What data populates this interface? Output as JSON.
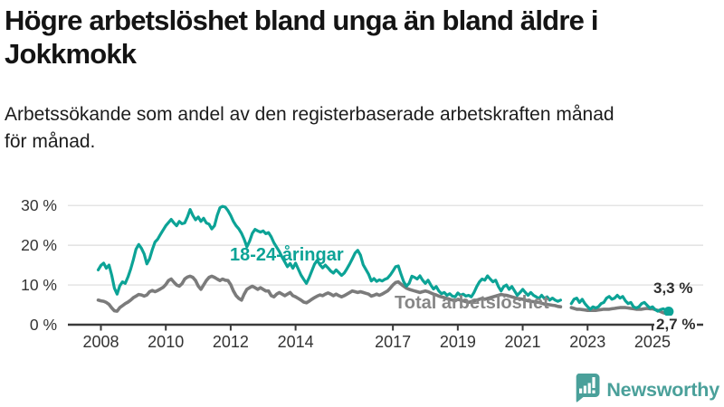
{
  "title_lines": [
    "Högre arbetslöshet bland unga än bland äldre i",
    "Jokkmokk"
  ],
  "subtitle_lines": [
    "Arbetssökande som andel av den registerbaserade arbetskraften månad",
    "för månad."
  ],
  "branding": {
    "logo_text": "Newsworthy",
    "logo_color": "#4aa09a"
  },
  "chart_data": {
    "type": "line",
    "title": "Högre arbetslöshet bland unga än bland äldre i Jokkmokk",
    "subtitle": "Arbetssökande som andel av den registerbaserade arbetskraften månad för månad.",
    "unit": "%",
    "grid": "horizontal",
    "legend_position": "inline-labels",
    "x_start_year": 2007.9167,
    "x_step_years": 0.083333,
    "x_tick_years": [
      2008,
      2010,
      2012,
      2014,
      2017,
      2019,
      2021,
      2023,
      2025
    ],
    "x_tick_labels": [
      "2008",
      "2010",
      "2012",
      "2014",
      "2017",
      "2019",
      "2021",
      "2023",
      "2025"
    ],
    "y_ticks": [
      0,
      10,
      20,
      30
    ],
    "y_tick_labels": [
      "0 %",
      "10 %",
      "20 %",
      "30 %"
    ],
    "ylim": [
      0,
      31
    ],
    "axis_color": "#3a3a3a",
    "gridline_color": "#dcdcdc",
    "tick_label_color": "#333333",
    "series": [
      {
        "name": "Total arbetslöshet",
        "color": "#7b7b7b",
        "label_color": "#868686",
        "end_label": "2,7 %",
        "end_value": 2.7,
        "end_dot": false,
        "values": [
          6.2,
          6.0,
          5.9,
          5.6,
          5.1,
          4.2,
          3.5,
          3.4,
          4.3,
          4.8,
          5.3,
          5.7,
          6.2,
          6.8,
          7.2,
          7.6,
          7.5,
          7.2,
          7.5,
          8.3,
          8.6,
          8.3,
          8.6,
          9.0,
          9.4,
          10.1,
          11.1,
          11.5,
          10.7,
          10.0,
          9.7,
          10.3,
          11.5,
          12.0,
          12.2,
          11.9,
          11.1,
          9.7,
          8.9,
          10.0,
          11.1,
          11.9,
          12.2,
          11.9,
          11.5,
          11.1,
          11.5,
          11.2,
          11.1,
          10.1,
          8.5,
          7.3,
          6.6,
          6.2,
          7.7,
          8.9,
          9.3,
          9.7,
          9.3,
          8.9,
          9.3,
          8.9,
          8.5,
          8.5,
          7.3,
          7.0,
          7.7,
          8.1,
          7.7,
          7.3,
          7.7,
          8.1,
          7.3,
          7.0,
          6.6,
          6.2,
          5.7,
          5.5,
          5.9,
          6.4,
          6.8,
          7.2,
          7.5,
          7.3,
          7.7,
          8.0,
          7.7,
          7.3,
          7.7,
          7.3,
          7.0,
          7.3,
          7.7,
          8.1,
          8.5,
          8.3,
          8.1,
          8.3,
          8.1,
          7.9,
          7.7,
          7.2,
          7.4,
          7.7,
          7.4,
          7.7,
          8.1,
          8.5,
          9.2,
          10.0,
          10.6,
          10.8,
          10.2,
          9.7,
          9.2,
          8.9,
          8.7,
          8.5,
          8.3,
          8.1,
          8.3,
          8.5,
          8.3,
          8.0,
          7.7,
          7.5,
          7.2,
          7.0,
          6.8,
          6.6,
          6.4,
          6.2,
          6.0,
          6.4,
          6.2,
          6.0,
          5.8,
          5.6,
          5.8,
          6.0,
          6.2,
          6.4,
          6.6,
          6.4,
          6.6,
          6.8,
          7.0,
          7.2,
          7.4,
          7.6,
          7.5,
          7.4,
          7.2,
          7.0,
          6.8,
          6.6,
          6.5,
          6.4,
          6.2,
          6.0,
          5.9,
          5.8,
          5.7,
          5.6,
          5.4,
          5.2,
          5.1,
          5.0,
          4.9,
          4.8,
          4.6,
          4.5,
          null,
          null,
          null,
          4.3,
          4.1,
          3.9,
          3.9,
          3.8,
          3.7,
          3.6,
          3.6,
          3.6,
          3.6,
          3.7,
          3.8,
          3.9,
          3.9,
          3.9,
          4.0,
          4.1,
          4.2,
          4.3,
          4.3,
          4.3,
          4.2,
          4.1,
          4.0,
          3.9,
          3.9,
          3.9,
          4.0,
          4.1,
          4.0,
          4.0,
          3.8,
          3.6,
          3.3,
          3.0,
          2.8,
          2.7
        ]
      },
      {
        "name": "18-24-åringar",
        "color": "#0ca396",
        "label_color": "#0ca396",
        "end_label": "3,3 %",
        "end_value": 3.3,
        "end_dot": true,
        "values": [
          13.8,
          14.9,
          15.5,
          14.2,
          15.0,
          12.4,
          9.2,
          7.7,
          9.8,
          10.8,
          10.4,
          12.0,
          14.0,
          16.4,
          19.0,
          20.2,
          19.2,
          17.8,
          15.3,
          16.6,
          18.9,
          20.8,
          21.5,
          22.7,
          23.8,
          24.9,
          25.7,
          26.5,
          25.6,
          24.9,
          26.0,
          25.4,
          25.6,
          27.1,
          29.0,
          27.5,
          26.4,
          27.1,
          26.0,
          26.8,
          25.6,
          25.3,
          24.1,
          24.9,
          27.5,
          29.4,
          29.8,
          29.6,
          28.7,
          27.5,
          26.0,
          24.9,
          24.1,
          23.0,
          21.5,
          19.6,
          21.0,
          23.0,
          24.0,
          23.6,
          23.3,
          23.6,
          22.9,
          23.2,
          22.1,
          20.6,
          19.5,
          18.4,
          17.0,
          15.8,
          14.6,
          15.4,
          14.2,
          15.5,
          14.0,
          12.5,
          11.4,
          10.4,
          11.8,
          13.5,
          15.2,
          16.2,
          15.1,
          14.3,
          15.0,
          14.3,
          13.5,
          13.0,
          13.8,
          13.1,
          12.4,
          13.0,
          14.1,
          15.3,
          16.6,
          18.0,
          18.7,
          17.5,
          15.1,
          13.9,
          12.7,
          11.0,
          11.6,
          10.9,
          11.3,
          11.0,
          11.4,
          11.7,
          12.5,
          13.5,
          14.6,
          14.8,
          12.7,
          10.8,
          9.7,
          10.4,
          12.2,
          11.9,
          11.5,
          12.3,
          11.2,
          10.4,
          11.2,
          10.0,
          9.0,
          9.6,
          8.5,
          7.8,
          8.1,
          7.4,
          7.8,
          7.2,
          7.0,
          8.0,
          7.4,
          7.7,
          7.2,
          7.4,
          7.0,
          8.1,
          9.6,
          10.8,
          11.5,
          11.2,
          12.3,
          11.5,
          10.8,
          11.2,
          9.6,
          8.5,
          9.6,
          10.0,
          8.9,
          9.6,
          8.5,
          7.4,
          8.1,
          8.9,
          8.1,
          7.4,
          8.1,
          7.4,
          7.0,
          6.6,
          7.4,
          6.6,
          7.0,
          6.2,
          6.7,
          6.2,
          5.9,
          6.2,
          null,
          null,
          null,
          5.3,
          6.4,
          6.7,
          5.6,
          6.4,
          5.3,
          4.5,
          3.9,
          4.5,
          4.2,
          4.5,
          5.3,
          5.6,
          6.7,
          7.1,
          6.4,
          6.7,
          7.4,
          6.7,
          7.1,
          6.0,
          5.3,
          5.6,
          4.5,
          4.2,
          4.5,
          5.3,
          5.6,
          4.9,
          4.2,
          4.5,
          3.8,
          3.4,
          3.8,
          4.0,
          3.6,
          3.3
        ]
      }
    ]
  }
}
